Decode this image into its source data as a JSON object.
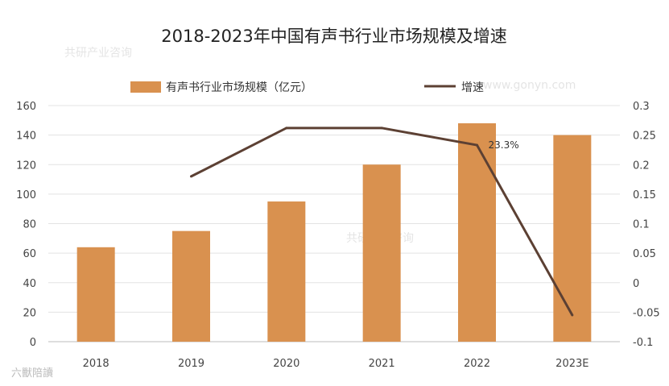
{
  "chart_data": {
    "type": "bar",
    "title": "2018-2023年中国有声书行业市场规模及增速",
    "categories": [
      "2018",
      "2019",
      "2020",
      "2021",
      "2022",
      "2023E"
    ],
    "series": [
      {
        "name": "有声书行业市场规模（亿元）",
        "type": "bar",
        "axis": "left",
        "color": "#D9914F",
        "values": [
          64,
          75,
          95,
          120,
          148,
          140
        ]
      },
      {
        "name": "增速",
        "type": "line",
        "axis": "right",
        "color": "#5C4033",
        "values": [
          null,
          0.18,
          0.262,
          0.262,
          0.233,
          -0.055
        ]
      }
    ],
    "left_axis": {
      "min": 0,
      "max": 160,
      "step": 20,
      "ticks": [
        "0",
        "20",
        "40",
        "60",
        "80",
        "100",
        "120",
        "140",
        "160"
      ]
    },
    "right_axis": {
      "min": -0.1,
      "max": 0.3,
      "step": 0.05,
      "ticks": [
        "-0.1",
        "-0.05",
        "0",
        "0.05",
        "0.1",
        "0.15",
        "0.2",
        "0.25",
        "0.3"
      ]
    },
    "annotations": [
      {
        "category": "2022",
        "label": "23.3%"
      }
    ],
    "legend_position": "top",
    "gridlines": true
  },
  "watermark": {
    "text": "共研产业咨询",
    "url_text": "www.gonyn.com"
  },
  "corner_badge": "六獸陪讀"
}
